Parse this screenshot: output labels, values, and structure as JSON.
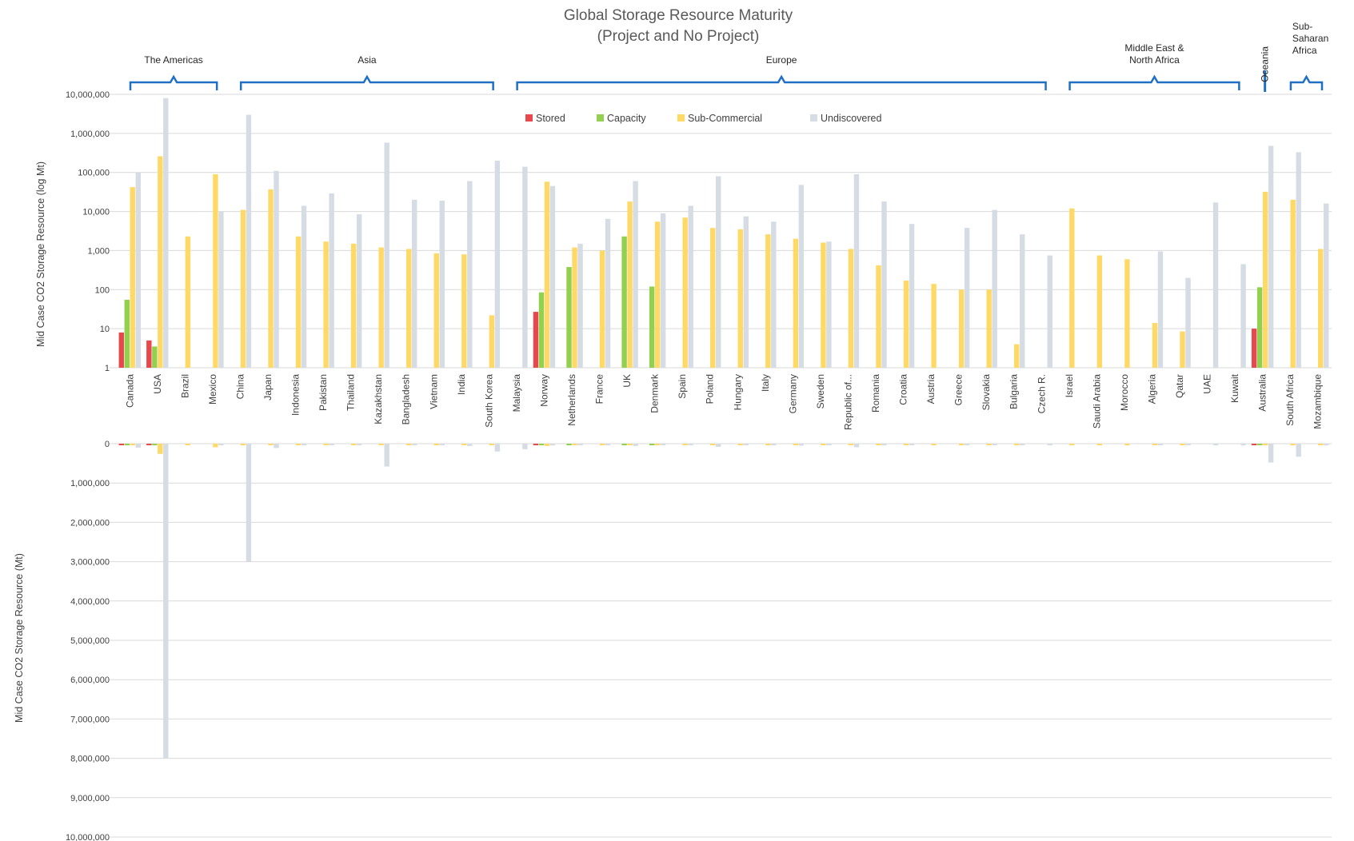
{
  "chart_data": [
    {
      "type": "bar",
      "title": "Global Storage Resource Maturity",
      "subtitle": "(Project and No Project)",
      "ylabel": "Mid Case CO2 Storage Resource (log Mt)",
      "yscale": "log",
      "ylim": [
        1,
        10000000
      ],
      "ytick_labels": [
        "1",
        "10",
        "100",
        "1,000",
        "10,000",
        "100,000",
        "1,000,000",
        "10,000,000"
      ],
      "grid": true,
      "legend": "top-center",
      "categories": [
        "Canada",
        "USA",
        "Brazil",
        "Mexico",
        "China",
        "Japan",
        "Indonesia",
        "Pakistan",
        "Thailand",
        "Kazakhstan",
        "Bangladesh",
        "Vietnam",
        "India",
        "South Korea",
        "Malaysia",
        "Norway",
        "Netherlands",
        "France",
        "UK",
        "Denmark",
        "Spain",
        "Poland",
        "Hungary",
        "Italy",
        "Germany",
        "Sweden",
        "Republic of...",
        "Romania",
        "Croatia",
        "Austria",
        "Greece",
        "Slovakia",
        "Bulgaria",
        "Czech R.",
        "Israel",
        "Saudi Arabia",
        "Morocco",
        "Algeria",
        "Qatar",
        "UAE",
        "Kuwait",
        "Australia",
        "South Africa",
        "Mozambique"
      ],
      "regions": [
        {
          "name": "The Americas",
          "categories": [
            "Canada",
            "USA",
            "Brazil",
            "Mexico"
          ]
        },
        {
          "name": "Asia",
          "categories": [
            "China",
            "Japan",
            "Indonesia",
            "Pakistan",
            "Thailand",
            "Kazakhstan",
            "Bangladesh",
            "Vietnam",
            "India",
            "South Korea"
          ]
        },
        {
          "name": "Europe",
          "categories": [
            "Malaysia",
            "Norway",
            "Netherlands",
            "France",
            "UK",
            "Denmark",
            "Spain",
            "Poland",
            "Hungary",
            "Italy",
            "Germany",
            "Sweden",
            "Republic of...",
            "Romania",
            "Croatia",
            "Austria",
            "Greece",
            "Slovakia",
            "Bulgaria",
            "Czech R."
          ]
        },
        {
          "name": "Middle East & North Africa",
          "categories": [
            "Israel",
            "Saudi Arabia",
            "Morocco",
            "Algeria",
            "Qatar",
            "UAE",
            "Kuwait"
          ]
        },
        {
          "name": "Oceania",
          "categories": [
            "Australia"
          ]
        },
        {
          "name": "Sub-Saharan Africa",
          "categories": [
            "South Africa",
            "Mozambique"
          ]
        }
      ],
      "series": [
        {
          "name": "Stored",
          "color": "#e8474b",
          "values": [
            8,
            5,
            null,
            null,
            null,
            null,
            null,
            null,
            null,
            null,
            null,
            null,
            null,
            null,
            null,
            27,
            null,
            null,
            null,
            null,
            null,
            null,
            null,
            null,
            null,
            null,
            null,
            null,
            null,
            null,
            null,
            null,
            null,
            null,
            null,
            null,
            null,
            null,
            null,
            null,
            null,
            10,
            null,
            null
          ]
        },
        {
          "name": "Capacity",
          "color": "#92d050",
          "values": [
            55,
            3.5,
            null,
            null,
            null,
            null,
            null,
            null,
            null,
            null,
            null,
            null,
            null,
            null,
            null,
            85,
            380,
            null,
            2300,
            120,
            null,
            null,
            null,
            null,
            null,
            null,
            null,
            null,
            null,
            null,
            null,
            null,
            null,
            null,
            null,
            null,
            null,
            null,
            null,
            null,
            null,
            115,
            null,
            null
          ]
        },
        {
          "name": "Sub-Commercial",
          "color": "#ffd966",
          "values": [
            42000,
            260000,
            2300,
            90000,
            11000,
            37000,
            2300,
            1700,
            1500,
            1200,
            1100,
            850,
            800,
            22,
            null,
            58000,
            1200,
            1000,
            18000,
            5500,
            7000,
            3800,
            3500,
            2600,
            2000,
            1600,
            1100,
            420,
            170,
            140,
            100,
            100,
            4,
            null,
            12000,
            750,
            600,
            14,
            8.5,
            null,
            null,
            32000,
            20000,
            1100
          ]
        },
        {
          "name": "Undiscovered",
          "color": "#d6dce4",
          "values": [
            100000,
            8000000,
            null,
            10000,
            3000000,
            110000,
            14000,
            29000,
            8500,
            580000,
            20000,
            19000,
            60000,
            200000,
            140000,
            45000,
            1500,
            6500,
            60000,
            9000,
            14000,
            80000,
            7500,
            5500,
            48000,
            1700,
            90000,
            18000,
            4800,
            null,
            3800,
            11000,
            2600,
            750,
            null,
            null,
            null,
            950,
            200,
            17000,
            450,
            480000,
            330000,
            16000
          ]
        }
      ]
    },
    {
      "type": "bar",
      "ylabel": "Mid Case CO2 Storage Resource (Mt)",
      "orientation": "inverted",
      "ylim": [
        0,
        10000000
      ],
      "ytick_labels": [
        "0",
        "1,000,000",
        "2,000,000",
        "3,000,000",
        "4,000,000",
        "5,000,000",
        "6,000,000",
        "7,000,000",
        "8,000,000",
        "9,000,000",
        "10,000,000"
      ],
      "grid": true,
      "note": "same categories and series as the upper chart, plotted on a linear reversed axis"
    }
  ]
}
